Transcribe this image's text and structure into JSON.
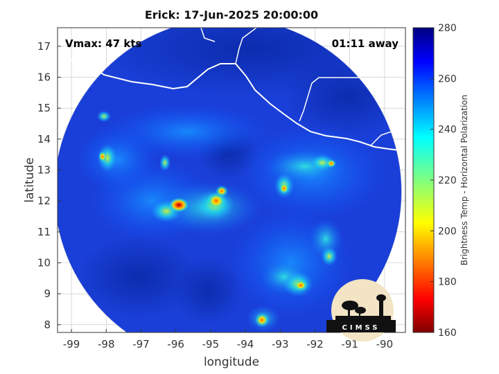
{
  "title": "Erick: 17-Jun-2025 20:00:00",
  "annotations": {
    "vmax": "Vmax: 47 kts",
    "away": "01:11 away"
  },
  "chart_data": {
    "type": "heatmap",
    "xlabel": "longitude",
    "ylabel": "latitude",
    "xlim": [
      -99.4,
      -89.4
    ],
    "ylim": [
      7.75,
      17.6
    ],
    "xticks": [
      -99,
      -98,
      -97,
      -96,
      -95,
      -94,
      -93,
      -92,
      -91,
      -90
    ],
    "yticks": [
      8,
      9,
      10,
      11,
      12,
      13,
      14,
      15,
      16,
      17
    ],
    "grid": true,
    "colorbar": {
      "label": "Brightness Temp - Horizontal Polarization",
      "range": [
        160,
        280
      ],
      "ticks": [
        160,
        180,
        200,
        220,
        240,
        260,
        280
      ],
      "colormap": "jet"
    },
    "swath": {
      "center_lon": -94.5,
      "center_lat": 12.3
    },
    "features": [
      {
        "name": "storm center",
        "lon": -94.8,
        "lat": 12.1
      },
      {
        "name": "coldest core",
        "lon": -95.8,
        "lat": 11.95,
        "value": 175
      },
      {
        "name": "rainband",
        "lon": -93.4,
        "lat": 8.3,
        "value": 195
      }
    ]
  },
  "logo": {
    "text": "CIMSS"
  }
}
